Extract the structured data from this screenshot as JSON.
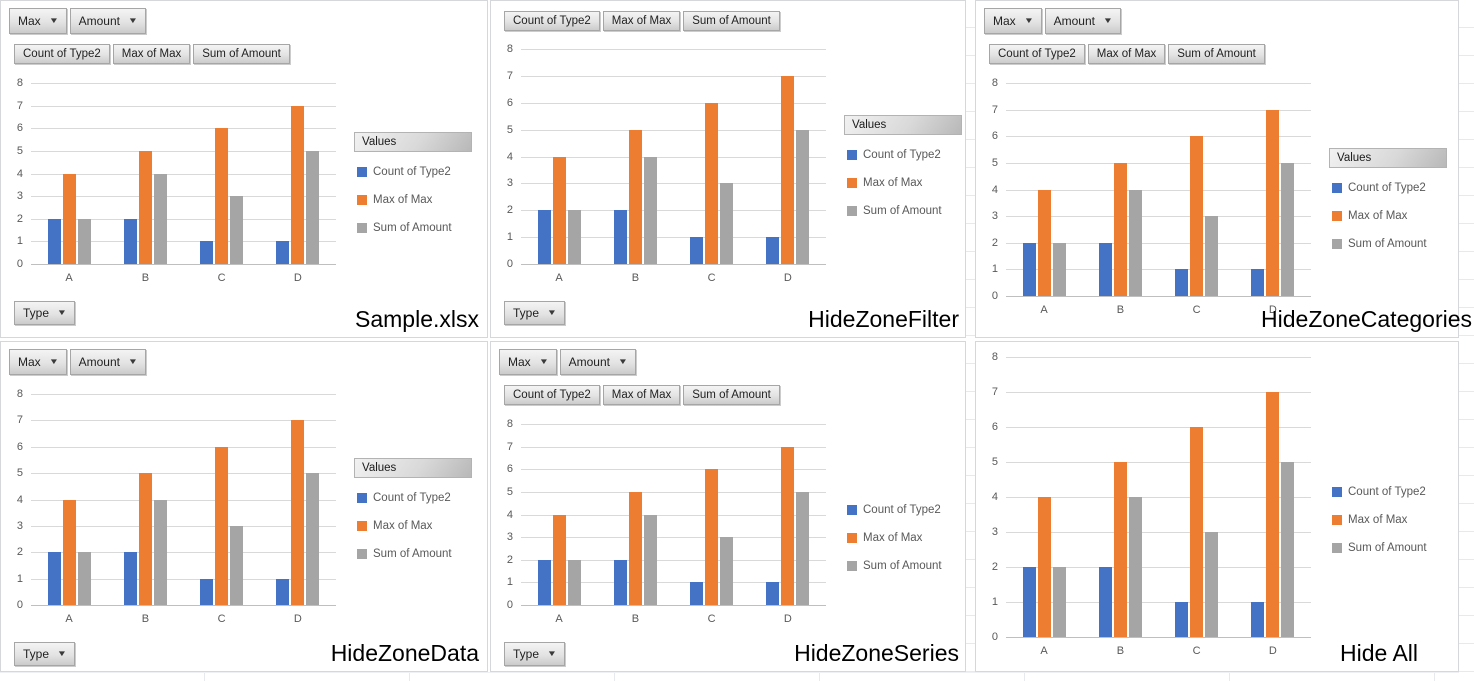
{
  "icons": {
    "dropdown": "▼"
  },
  "colors": {
    "series_blue": "#4472C4",
    "series_orange": "#ED7D31",
    "series_gray": "#A5A5A5",
    "axis_text": "#595959",
    "gridline": "#D9D9D9",
    "axis_line": "#BFBFBF",
    "caption_text": "#000000"
  },
  "chart_data": [
    {
      "title": "Sample.xlsx",
      "type": "bar",
      "categories": [
        "A",
        "B",
        "C",
        "D"
      ],
      "series": [
        {
          "name": "Count of Type2",
          "color": "#4472C4",
          "values": [
            2,
            2,
            1,
            1
          ]
        },
        {
          "name": "Max of Max",
          "color": "#ED7D31",
          "values": [
            4,
            5,
            6,
            7
          ]
        },
        {
          "name": "Sum of Amount",
          "color": "#A5A5A5",
          "values": [
            2,
            4,
            3,
            5
          ]
        }
      ],
      "ylim": [
        0,
        8
      ],
      "ytick_step": 1,
      "grid": true,
      "legend_position": "right",
      "legend_title": "Values",
      "filter_buttons": [
        "Max",
        "Amount"
      ],
      "value_field_buttons": [
        "Count of Type2",
        "Max of Max",
        "Sum of Amount"
      ],
      "axis_field_button": "Type"
    },
    {
      "title": "HideZoneFilter",
      "type": "bar",
      "categories": [
        "A",
        "B",
        "C",
        "D"
      ],
      "series": [
        {
          "name": "Count of Type2",
          "color": "#4472C4",
          "values": [
            2,
            2,
            1,
            1
          ]
        },
        {
          "name": "Max of Max",
          "color": "#ED7D31",
          "values": [
            4,
            5,
            6,
            7
          ]
        },
        {
          "name": "Sum of Amount",
          "color": "#A5A5A5",
          "values": [
            2,
            4,
            3,
            5
          ]
        }
      ],
      "ylim": [
        0,
        8
      ],
      "ytick_step": 1,
      "grid": true,
      "legend_position": "right",
      "legend_title": "Values",
      "filter_buttons": [],
      "value_field_buttons": [
        "Count of Type2",
        "Max of Max",
        "Sum of Amount"
      ],
      "axis_field_button": "Type"
    },
    {
      "title": "HideZoneCategories",
      "type": "bar",
      "categories": [
        "A",
        "B",
        "C",
        "D"
      ],
      "series": [
        {
          "name": "Count of Type2",
          "color": "#4472C4",
          "values": [
            2,
            2,
            1,
            1
          ]
        },
        {
          "name": "Max of Max",
          "color": "#ED7D31",
          "values": [
            4,
            5,
            6,
            7
          ]
        },
        {
          "name": "Sum of Amount",
          "color": "#A5A5A5",
          "values": [
            2,
            4,
            3,
            5
          ]
        }
      ],
      "ylim": [
        0,
        8
      ],
      "ytick_step": 1,
      "grid": true,
      "legend_position": "right",
      "legend_title": "Values",
      "filter_buttons": [
        "Max",
        "Amount"
      ],
      "value_field_buttons": [
        "Count of Type2",
        "Max of Max",
        "Sum of Amount"
      ],
      "axis_field_button": null
    },
    {
      "title": "HideZoneData",
      "type": "bar",
      "categories": [
        "A",
        "B",
        "C",
        "D"
      ],
      "series": [
        {
          "name": "Count of Type2",
          "color": "#4472C4",
          "values": [
            2,
            2,
            1,
            1
          ]
        },
        {
          "name": "Max of Max",
          "color": "#ED7D31",
          "values": [
            4,
            5,
            6,
            7
          ]
        },
        {
          "name": "Sum of Amount",
          "color": "#A5A5A5",
          "values": [
            2,
            4,
            3,
            5
          ]
        }
      ],
      "ylim": [
        0,
        8
      ],
      "ytick_step": 1,
      "grid": true,
      "legend_position": "right",
      "legend_title": "Values",
      "filter_buttons": [
        "Max",
        "Amount"
      ],
      "value_field_buttons": [],
      "axis_field_button": "Type"
    },
    {
      "title": "HideZoneSeries",
      "type": "bar",
      "categories": [
        "A",
        "B",
        "C",
        "D"
      ],
      "series": [
        {
          "name": "Count of Type2",
          "color": "#4472C4",
          "values": [
            2,
            2,
            1,
            1
          ]
        },
        {
          "name": "Max of Max",
          "color": "#ED7D31",
          "values": [
            4,
            5,
            6,
            7
          ]
        },
        {
          "name": "Sum of Amount",
          "color": "#A5A5A5",
          "values": [
            2,
            4,
            3,
            5
          ]
        }
      ],
      "ylim": [
        0,
        8
      ],
      "ytick_step": 1,
      "grid": true,
      "legend_position": "right",
      "legend_title": null,
      "filter_buttons": [
        "Max",
        "Amount"
      ],
      "value_field_buttons": [
        "Count of Type2",
        "Max of Max",
        "Sum of Amount"
      ],
      "axis_field_button": "Type"
    },
    {
      "title": "Hide All",
      "type": "bar",
      "categories": [
        "A",
        "B",
        "C",
        "D"
      ],
      "series": [
        {
          "name": "Count of Type2",
          "color": "#4472C4",
          "values": [
            2,
            2,
            1,
            1
          ]
        },
        {
          "name": "Max of Max",
          "color": "#ED7D31",
          "values": [
            4,
            5,
            6,
            7
          ]
        },
        {
          "name": "Sum of Amount",
          "color": "#A5A5A5",
          "values": [
            2,
            4,
            3,
            5
          ]
        }
      ],
      "ylim": [
        0,
        8
      ],
      "ytick_step": 1,
      "grid": true,
      "legend_position": "right",
      "legend_title": null,
      "filter_buttons": [],
      "value_field_buttons": [],
      "axis_field_button": null
    }
  ]
}
